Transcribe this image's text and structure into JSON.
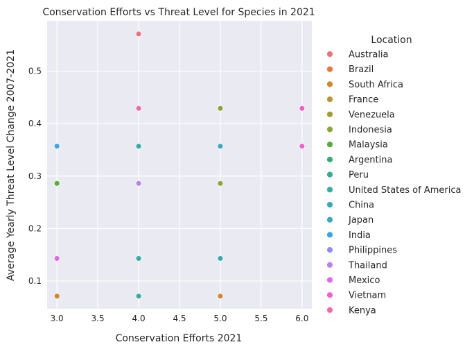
{
  "chart_data": {
    "type": "scatter",
    "title": "Conservation Efforts vs Threat Level for Species in 2021",
    "xlabel": "Conservation Efforts 2021",
    "ylabel": "Average Yearly Threat Level Change 2007-2021",
    "xlim": [
      2.88,
      6.12
    ],
    "ylim": [
      0.047,
      0.596
    ],
    "xticks": [
      3.0,
      3.5,
      4.0,
      4.5,
      5.0,
      5.5,
      6.0
    ],
    "yticks": [
      0.1,
      0.2,
      0.3,
      0.4,
      0.5
    ],
    "grid": true,
    "legend_title": "Location",
    "legend_position": "right",
    "series": [
      {
        "name": "Australia",
        "color": "#f0717b",
        "points": [
          [
            4,
            0.571
          ]
        ]
      },
      {
        "name": "Brazil",
        "color": "#e9773d",
        "points": []
      },
      {
        "name": "South Africa",
        "color": "#d0882c",
        "points": [
          [
            3,
            0.071
          ],
          [
            5,
            0.071
          ]
        ]
      },
      {
        "name": "France",
        "color": "#b99431",
        "points": []
      },
      {
        "name": "Venezuela",
        "color": "#a59b31",
        "points": []
      },
      {
        "name": "Indonesia",
        "color": "#8aa636",
        "points": [
          [
            5,
            0.429
          ],
          [
            5,
            0.286
          ]
        ]
      },
      {
        "name": "Malaysia",
        "color": "#55ae3a",
        "points": [
          [
            3,
            0.286
          ]
        ]
      },
      {
        "name": "Argentina",
        "color": "#33b071",
        "points": []
      },
      {
        "name": "Peru",
        "color": "#34ae91",
        "points": []
      },
      {
        "name": "United States of America",
        "color": "#35aca4",
        "points": [
          [
            4,
            0.357
          ],
          [
            4,
            0.143
          ],
          [
            4,
            0.071
          ]
        ]
      },
      {
        "name": "China",
        "color": "#37aab4",
        "points": [
          [
            5,
            0.143
          ]
        ]
      },
      {
        "name": "Japan",
        "color": "#39a7c7",
        "points": [
          [
            5,
            0.357
          ]
        ]
      },
      {
        "name": "India",
        "color": "#3ba3ec",
        "points": [
          [
            3,
            0.357
          ]
        ]
      },
      {
        "name": "Philippines",
        "color": "#8e8ff5",
        "points": []
      },
      {
        "name": "Thailand",
        "color": "#b982f0",
        "points": [
          [
            4,
            0.286
          ]
        ]
      },
      {
        "name": "Mexico",
        "color": "#e367f0",
        "points": [
          [
            3,
            0.143
          ]
        ]
      },
      {
        "name": "Vietnam",
        "color": "#f261c9",
        "points": [
          [
            6,
            0.429
          ],
          [
            6,
            0.357
          ]
        ]
      },
      {
        "name": "Kenya",
        "color": "#f36aa9",
        "points": [
          [
            4,
            0.429
          ]
        ]
      }
    ]
  }
}
